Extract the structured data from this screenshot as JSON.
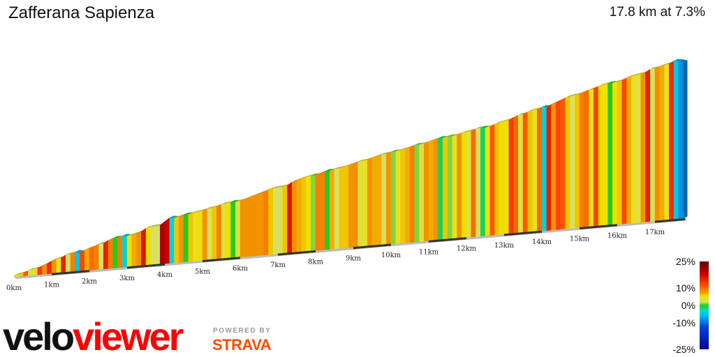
{
  "header": {
    "title": "Zafferana Sapienza",
    "summary": "17.8 km at 7.3%"
  },
  "branding": {
    "logo_velo": "velo",
    "logo_viewer": "viewer",
    "powered_by": "POWERED BY",
    "strava": "STRAVA",
    "logo_color": "#ff0000",
    "logo_dark": "#111111",
    "strava_color": "#fc4c02",
    "powered_color": "#999999"
  },
  "legend": {
    "labels": [
      "25%",
      "10%",
      "0%",
      "-10%",
      "-25%"
    ],
    "values": [
      25,
      10,
      0,
      -10,
      -25
    ],
    "stops": [
      {
        "value": 25,
        "color": "#5c0000"
      },
      {
        "value": 18,
        "color": "#cc0000"
      },
      {
        "value": 12,
        "color": "#ff4400"
      },
      {
        "value": 8,
        "color": "#f39200"
      },
      {
        "value": 5,
        "color": "#f0e000"
      },
      {
        "value": 2,
        "color": "#d8e060"
      },
      {
        "value": 0,
        "color": "#22cc22"
      },
      {
        "value": -3,
        "color": "#00ddcc"
      },
      {
        "value": -6,
        "color": "#00bbee"
      },
      {
        "value": -12,
        "color": "#0044dd"
      },
      {
        "value": -25,
        "color": "#000099"
      }
    ]
  },
  "chart_data": {
    "type": "area",
    "xlabel": "",
    "ylabel": "",
    "xlim": [
      0,
      17.8
    ],
    "x_unit": "km",
    "km_ticks": [
      "0km",
      "1km",
      "2km",
      "3km",
      "4km",
      "5km",
      "6km",
      "7km",
      "8km",
      "9km",
      "10km",
      "11km",
      "12km",
      "13km",
      "14km",
      "15km",
      "16km",
      "17km"
    ],
    "total_distance_km": 17.8,
    "average_gradient_pct": 7.3,
    "segments_per_km": 8,
    "gradients_pct": [
      4,
      6,
      11,
      3,
      5,
      13,
      8,
      14,
      8,
      4,
      15,
      2,
      9,
      -5,
      12,
      7,
      10,
      9,
      2,
      15,
      9,
      0,
      9,
      -4,
      5,
      7,
      8,
      16,
      5,
      2,
      2,
      20,
      18,
      -4,
      6,
      8,
      0,
      6,
      4,
      5,
      8,
      2,
      6,
      9,
      3,
      5,
      0,
      3,
      8,
      8,
      8,
      8,
      8,
      9,
      6,
      2,
      2,
      6,
      16,
      8,
      7,
      6,
      5,
      1,
      9,
      9,
      0,
      7,
      2,
      6,
      6,
      8,
      8,
      3,
      4,
      8,
      7,
      7,
      2,
      8,
      1,
      4,
      6,
      7,
      9,
      1,
      3,
      8,
      7,
      8,
      -1,
      6,
      1,
      4,
      8,
      5,
      3,
      10,
      2,
      -1,
      5,
      11,
      6,
      5,
      5,
      13,
      10,
      3,
      11,
      6,
      4,
      10,
      -4,
      15,
      8,
      12,
      11,
      6,
      2,
      6,
      9,
      10,
      4,
      12,
      5,
      5,
      0,
      5,
      6,
      12,
      7,
      4,
      3,
      8,
      15,
      2,
      8,
      7,
      4,
      14,
      -5,
      -8
    ]
  }
}
